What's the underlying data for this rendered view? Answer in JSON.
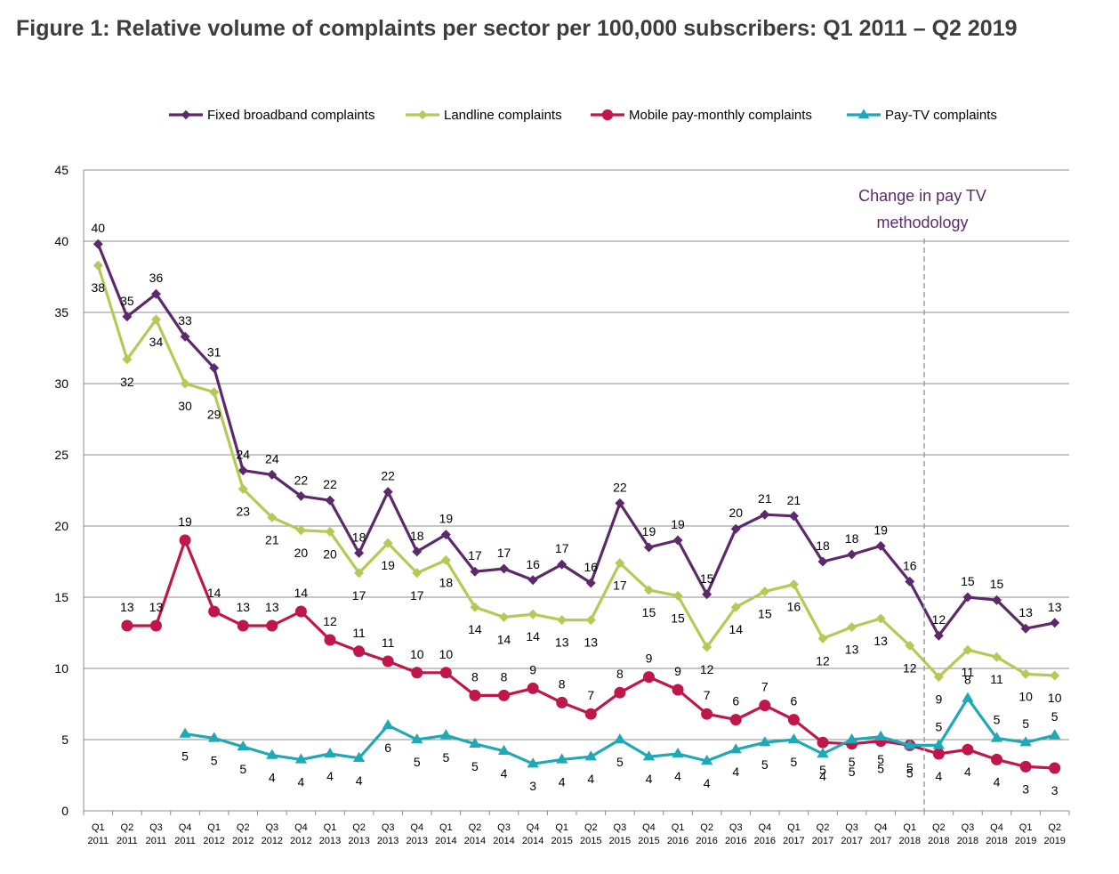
{
  "title": "Figure 1: Relative volume of complaints per sector per 100,000 subscribers: Q1 2011 – Q2 2019",
  "annotation": {
    "line1": "Change in pay TV",
    "line2": "methodology",
    "color": "#5c2a6b",
    "x_category": "Q2 2018"
  },
  "chart_data": {
    "type": "line",
    "title": "Figure 1: Relative volume of complaints per sector per 100,000 subscribers: Q1 2011 – Q2 2019",
    "xlabel": "",
    "ylabel": "",
    "ylim": [
      0,
      45
    ],
    "yticks": [
      0,
      5,
      10,
      15,
      20,
      25,
      30,
      35,
      40,
      45
    ],
    "grid": true,
    "legend_position": "top",
    "categories": [
      {
        "q": "Q1",
        "y": "2011"
      },
      {
        "q": "Q2",
        "y": "2011"
      },
      {
        "q": "Q3",
        "y": "2011"
      },
      {
        "q": "Q4",
        "y": "2011"
      },
      {
        "q": "Q1",
        "y": "2012"
      },
      {
        "q": "Q2",
        "y": "2012"
      },
      {
        "q": "Q3",
        "y": "2012"
      },
      {
        "q": "Q4",
        "y": "2012"
      },
      {
        "q": "Q1",
        "y": "2013"
      },
      {
        "q": "Q2",
        "y": "2013"
      },
      {
        "q": "Q3",
        "y": "2013"
      },
      {
        "q": "Q4",
        "y": "2013"
      },
      {
        "q": "Q1",
        "y": "2014"
      },
      {
        "q": "Q2",
        "y": "2014"
      },
      {
        "q": "Q3",
        "y": "2014"
      },
      {
        "q": "Q4",
        "y": "2014"
      },
      {
        "q": "Q1",
        "y": "2015"
      },
      {
        "q": "Q2",
        "y": "2015"
      },
      {
        "q": "Q3",
        "y": "2015"
      },
      {
        "q": "Q4",
        "y": "2015"
      },
      {
        "q": "Q1",
        "y": "2016"
      },
      {
        "q": "Q2",
        "y": "2016"
      },
      {
        "q": "Q3",
        "y": "2016"
      },
      {
        "q": "Q4",
        "y": "2016"
      },
      {
        "q": "Q1",
        "y": "2017"
      },
      {
        "q": "Q2",
        "y": "2017"
      },
      {
        "q": "Q3",
        "y": "2017"
      },
      {
        "q": "Q4",
        "y": "2017"
      },
      {
        "q": "Q1",
        "y": "2018"
      },
      {
        "q": "Q2",
        "y": "2018"
      },
      {
        "q": "Q3",
        "y": "2018"
      },
      {
        "q": "Q4",
        "y": "2018"
      },
      {
        "q": "Q1",
        "y": "2019"
      },
      {
        "q": "Q2",
        "y": "2019"
      }
    ],
    "series": [
      {
        "name": "Fixed broadband complaints",
        "color": "#5c2a6b",
        "marker": "diamond",
        "values": [
          39.8,
          34.7,
          36.3,
          33.3,
          31.1,
          23.9,
          23.6,
          22.1,
          21.8,
          18.1,
          22.4,
          18.2,
          19.4,
          16.8,
          17.0,
          16.2,
          17.3,
          16.0,
          21.6,
          18.5,
          19.0,
          15.2,
          19.8,
          20.8,
          20.7,
          17.5,
          18.0,
          18.6,
          16.1,
          12.3,
          15.0,
          14.8,
          12.8,
          13.2
        ],
        "labels": [
          "40",
          "35",
          "36",
          "33",
          "31",
          "24",
          "24",
          "22",
          "22",
          "18",
          "22",
          "18",
          "19",
          "17",
          "17",
          "16",
          "17",
          "16",
          "22",
          "19",
          "19",
          "15",
          "20",
          "21",
          "21",
          "18",
          "18",
          "19",
          "16",
          "12",
          "15",
          "15",
          "13",
          "13"
        ]
      },
      {
        "name": "Landline complaints",
        "color": "#b5c957",
        "marker": "diamond",
        "values": [
          38.3,
          31.7,
          34.5,
          30.0,
          29.4,
          22.6,
          20.6,
          19.7,
          19.6,
          16.7,
          18.8,
          16.7,
          17.6,
          14.3,
          13.6,
          13.8,
          13.4,
          13.4,
          17.4,
          15.5,
          15.1,
          11.5,
          14.3,
          15.4,
          15.9,
          12.1,
          12.9,
          13.5,
          11.6,
          9.4,
          11.3,
          10.8,
          9.6,
          9.5
        ],
        "labels": [
          "38",
          "32",
          "34",
          "30",
          "29",
          "23",
          "21",
          "20",
          "20",
          "17",
          "19",
          "17",
          "18",
          "14",
          "14",
          "14",
          "13",
          "13",
          "17",
          "15",
          "15",
          "12",
          "14",
          "15",
          "16",
          "12",
          "13",
          "13",
          "12",
          "9",
          "11",
          "11",
          "10",
          "10"
        ]
      },
      {
        "name": "Mobile pay-monthly complaints",
        "color": "#c0174a",
        "marker": "circle",
        "values": [
          null,
          13.0,
          13.0,
          19.0,
          14.0,
          13.0,
          13.0,
          14.0,
          12.0,
          11.2,
          10.5,
          9.7,
          9.7,
          8.1,
          8.1,
          8.6,
          7.6,
          6.8,
          8.3,
          9.4,
          8.5,
          6.8,
          6.4,
          7.4,
          6.4,
          4.8,
          4.7,
          4.9,
          4.6,
          4.0,
          4.3,
          3.6,
          3.1,
          3.0
        ],
        "labels": [
          null,
          "13",
          "13",
          "19",
          "14",
          "13",
          "13",
          "14",
          "12",
          "11",
          "11",
          "10",
          "10",
          "8",
          "8",
          "9",
          "8",
          "7",
          "8",
          "9",
          "9",
          "7",
          "6",
          "7",
          "6",
          "5",
          "5",
          "5",
          "5",
          "4",
          "4",
          "4",
          "3",
          "3"
        ]
      },
      {
        "name": "Pay-TV complaints",
        "color": "#1fa8b6",
        "marker": "triangle",
        "values": [
          null,
          null,
          null,
          5.4,
          5.1,
          4.5,
          3.9,
          3.6,
          4.0,
          3.7,
          6.0,
          5.0,
          5.3,
          4.7,
          4.2,
          3.3,
          3.6,
          3.8,
          5.0,
          3.8,
          4.0,
          3.5,
          4.3,
          4.8,
          5.0,
          4.0,
          5.0,
          5.2,
          4.6,
          4.6,
          7.9,
          5.1,
          4.8,
          5.3
        ],
        "labels": [
          null,
          null,
          null,
          "5",
          "5",
          "5",
          "4",
          "4",
          "4",
          "4",
          "6",
          "5",
          "5",
          "5",
          "4",
          "3",
          "4",
          "4",
          "5",
          "4",
          "4",
          "4",
          "4",
          "5",
          "5",
          "4",
          "5",
          "5",
          "5",
          "5",
          "8",
          "5",
          "5",
          "5"
        ]
      }
    ]
  }
}
